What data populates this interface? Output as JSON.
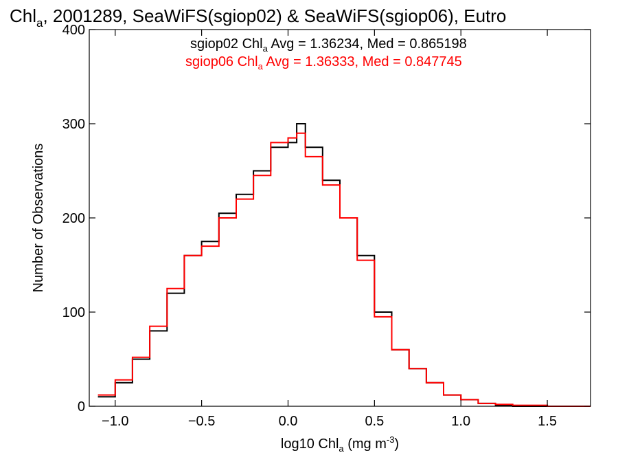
{
  "chart_data": {
    "type": "histogram",
    "title": {
      "main": "Chl",
      "sub": "a",
      "rest": ", 2001289, SeaWiFS(sgiop02) & SeaWiFS(sgiop06), Eutro"
    },
    "xlabel": {
      "main": "log10 Chl",
      "sub": "a",
      "rest": " (mg m",
      "sup": "-3",
      "close": ")"
    },
    "ylabel": "Number of Observations",
    "xlim": [
      -1.15,
      1.75
    ],
    "ylim": [
      0,
      400
    ],
    "xticks": [
      -1.0,
      -0.5,
      0.0,
      0.5,
      1.0,
      1.5
    ],
    "xtick_labels": [
      "−1.0",
      "−0.5",
      "0.0",
      "0.5",
      "1.0",
      "1.5"
    ],
    "yticks": [
      0,
      100,
      200,
      300,
      400
    ],
    "ytick_labels": [
      "0",
      "100",
      "200",
      "300",
      "400"
    ],
    "grid": false,
    "legend_position": "top-center",
    "series": [
      {
        "color": "#000000",
        "stats_label": {
          "name": "sgiop02 Chl",
          "sub": "a",
          "stats": " Avg = 1.36234, Med = 0.865198"
        },
        "x": [
          -1.1,
          -1.0,
          -0.9,
          -0.8,
          -0.7,
          -0.6,
          -0.5,
          -0.4,
          -0.3,
          -0.2,
          -0.1,
          0.0,
          0.05,
          0.1,
          0.2,
          0.3,
          0.4,
          0.5,
          0.6,
          0.7,
          0.8,
          0.9,
          1.0,
          1.1,
          1.2,
          1.3
        ],
        "values": [
          10,
          25,
          50,
          80,
          120,
          160,
          175,
          205,
          225,
          250,
          275,
          280,
          300,
          275,
          240,
          200,
          160,
          100,
          60,
          40,
          25,
          12,
          7,
          3,
          1,
          0
        ]
      },
      {
        "color": "#ff0000",
        "stats_label": {
          "name": "sgiop06 Chl",
          "sub": "a",
          "stats": " Avg = 1.36333, Med = 0.847745"
        },
        "x": [
          -1.1,
          -1.0,
          -0.9,
          -0.8,
          -0.7,
          -0.6,
          -0.5,
          -0.4,
          -0.3,
          -0.2,
          -0.1,
          0.0,
          0.05,
          0.1,
          0.2,
          0.3,
          0.4,
          0.5,
          0.6,
          0.7,
          0.8,
          0.9,
          1.0,
          1.1,
          1.2,
          1.3,
          1.4,
          1.5
        ],
        "values": [
          12,
          28,
          52,
          85,
          125,
          160,
          170,
          200,
          220,
          245,
          280,
          285,
          290,
          265,
          235,
          200,
          155,
          95,
          60,
          40,
          25,
          12,
          7,
          3,
          2,
          1,
          1,
          0
        ]
      }
    ]
  }
}
